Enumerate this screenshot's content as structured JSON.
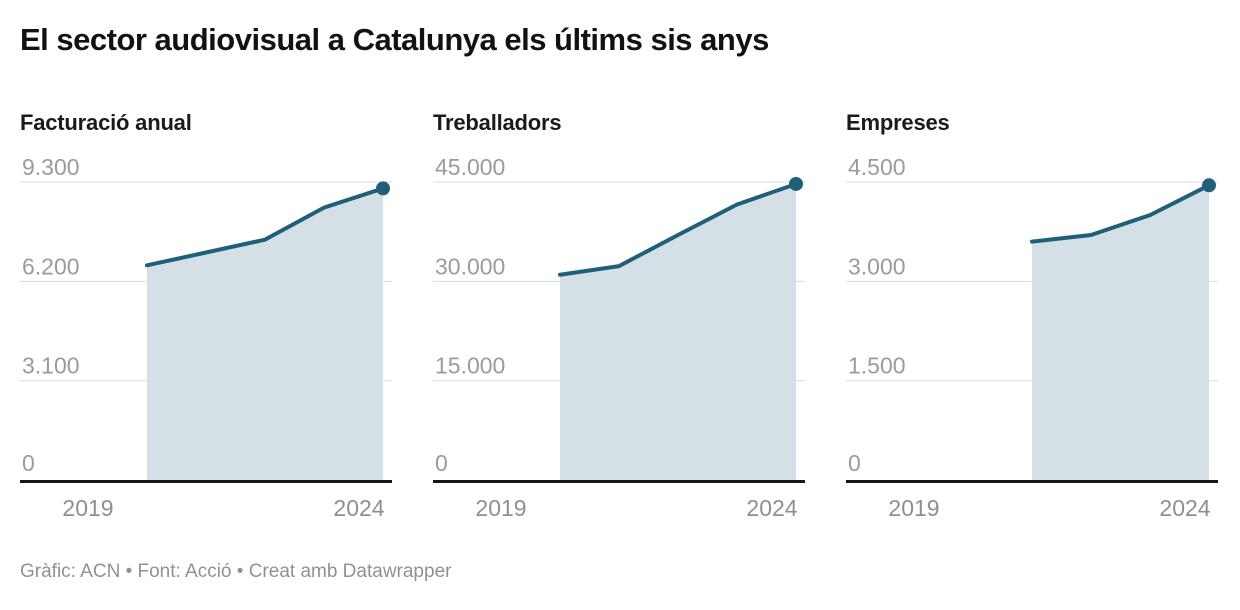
{
  "header": {
    "title": "El sector audiovisual a Catalunya els últims sis anys"
  },
  "footer": {
    "credit": "Gràfic: ACN • Font: Acció • Creat amb Datawrapper"
  },
  "colors": {
    "line": "#1e5f7a",
    "area_fill": "#d4e0e6",
    "gridline": "#dcdcdc",
    "baseline": "#161616",
    "ytick_label": "#9b9b9b",
    "xtick_label": "#8f8f8f",
    "title": "#121212",
    "panel_title": "#1a1a1a",
    "credit": "#919191"
  },
  "x_axis": {
    "domain": [
      2019,
      2024
    ],
    "tick_years": [
      2019,
      2024
    ],
    "tick_labels": [
      "2019",
      "2024"
    ]
  },
  "chart_data": [
    {
      "type": "area",
      "title": "Facturació anual",
      "x": [
        2020,
        2021,
        2022,
        2023,
        2024
      ],
      "values": [
        6700,
        7100,
        7500,
        8500,
        9100
      ],
      "ylim": [
        0,
        9300
      ],
      "yticks": [
        0,
        3100,
        6200,
        9300
      ],
      "ytick_labels": [
        "0",
        "3.100",
        "6.200",
        "9.300"
      ],
      "xlim": [
        2019,
        2024
      ],
      "xtick_labels": [
        "2019",
        "2024"
      ],
      "grid": true,
      "legend": "none",
      "end_dot": true
    },
    {
      "type": "area",
      "title": "Treballadors",
      "x": [
        2020,
        2021,
        2022,
        2023,
        2024
      ],
      "values": [
        31000,
        32300,
        37000,
        41600,
        44700
      ],
      "ylim": [
        0,
        45000
      ],
      "yticks": [
        0,
        15000,
        30000,
        45000
      ],
      "ytick_labels": [
        "0",
        "15.000",
        "30.000",
        "45.000"
      ],
      "xlim": [
        2019,
        2024
      ],
      "xtick_labels": [
        "2019",
        "2024"
      ],
      "grid": true,
      "legend": "none",
      "end_dot": true
    },
    {
      "type": "area",
      "title": "Empreses",
      "x": [
        2021,
        2022,
        2023,
        2024
      ],
      "values": [
        3600,
        3700,
        4000,
        4450
      ],
      "ylim": [
        0,
        4500
      ],
      "yticks": [
        0,
        1500,
        3000,
        4500
      ],
      "ytick_labels": [
        "0",
        "1.500",
        "3.000",
        "4.500"
      ],
      "xlim": [
        2019,
        2024
      ],
      "xtick_labels": [
        "2019",
        "2024"
      ],
      "grid": true,
      "legend": "none",
      "end_dot": true
    }
  ]
}
